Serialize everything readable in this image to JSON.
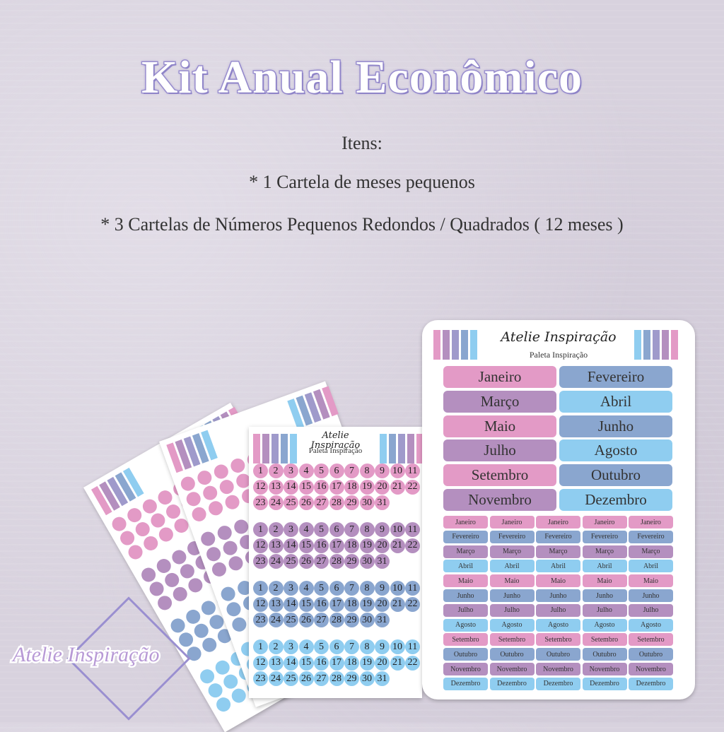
{
  "title": "Kit Anual Econômico",
  "items_heading": "Itens:",
  "items": [
    "* 1 Cartela de meses pequenos",
    "* 3 Cartelas de Números Pequenos Redondos / Quadrados ( 12 meses )"
  ],
  "brand": "Atelie Inspiração",
  "palette_name": "Paleta Inspiração",
  "colors": {
    "pink": "#e39ac6",
    "purple": "#b48fbf",
    "lavender": "#9f9acb",
    "blue": "#8aa6cf",
    "light": "#8fcdf0",
    "title_stroke": "#9d92d2"
  },
  "day_numbers": [
    "1",
    "2",
    "3",
    "4",
    "5",
    "6",
    "7",
    "8",
    "9",
    "10",
    "11",
    "12",
    "13",
    "14",
    "15",
    "16",
    "17",
    "18",
    "19",
    "20",
    "21",
    "22",
    "23",
    "24",
    "25",
    "26",
    "27",
    "28",
    "29",
    "30",
    "31"
  ],
  "months": [
    "Janeiro",
    "Fevereiro",
    "Março",
    "Abril",
    "Maio",
    "Junho",
    "Julho",
    "Agosto",
    "Setembro",
    "Outubro",
    "Novembro",
    "Dezembro"
  ],
  "logo_text": "Atelie Inspiração"
}
